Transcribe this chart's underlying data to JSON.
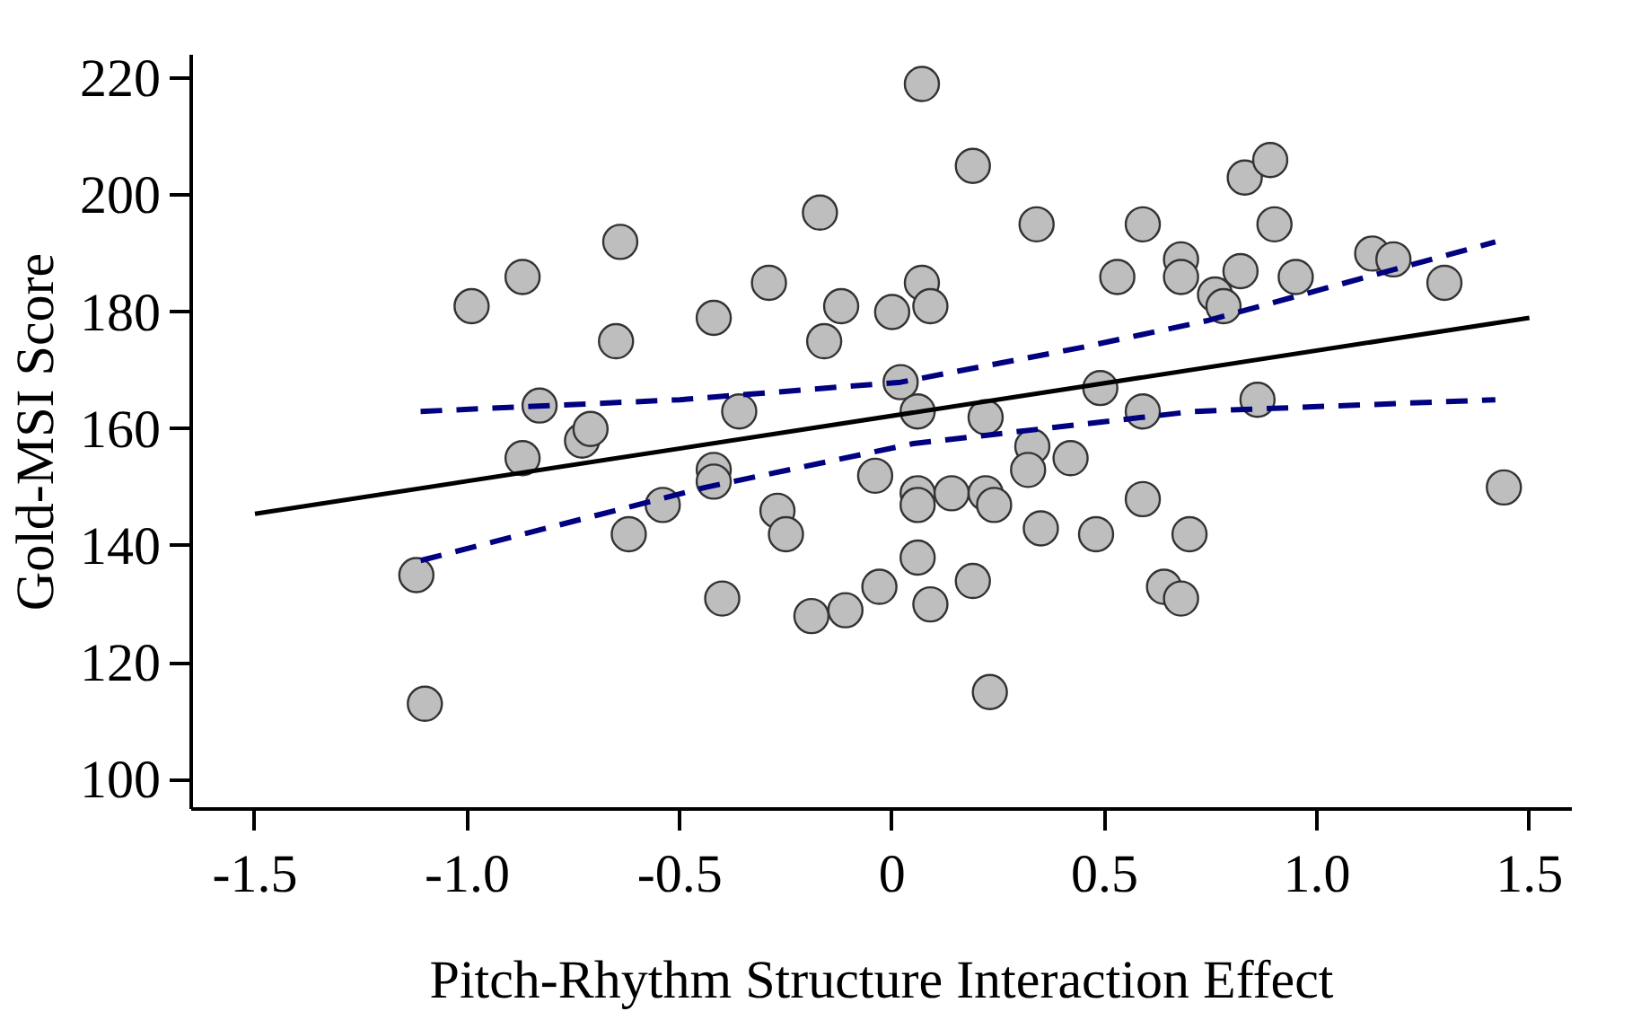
{
  "chart_data": {
    "type": "scatter",
    "xlabel": "Pitch-Rhythm Structure Interaction Effect",
    "ylabel": "Gold-MSI Score",
    "xlim": [
      -1.65,
      1.6
    ],
    "ylim": [
      95,
      224
    ],
    "xticks": [
      {
        "value": -1.5,
        "label": "-1.5"
      },
      {
        "value": -1,
        "label": "-1.0"
      },
      {
        "value": -0.5,
        "label": "-0.5"
      },
      0,
      0.5,
      {
        "value": 1,
        "label": "1.0"
      },
      1.5
    ],
    "yticks": [
      100,
      120,
      140,
      160,
      180,
      200,
      220
    ],
    "grid": false,
    "series": [
      {
        "color": "#bebebe",
        "marker": "circle",
        "x": [
          -0.99,
          -0.87,
          -0.64,
          -0.65,
          -0.83,
          -0.87,
          -0.73,
          -0.71,
          -1.12,
          -1.1,
          -0.62,
          -0.54,
          -0.42,
          -0.36,
          -0.42,
          -0.42,
          -0.29,
          -0.27,
          -0.25,
          -0.4,
          -0.17,
          -0.12,
          -0.16,
          -0.19,
          -0.11,
          -0.03,
          -0.04,
          0.07,
          0.0,
          0.07,
          0.09,
          0.02,
          0.06,
          0.06,
          0.06,
          0.14,
          0.06,
          0.09,
          0.19,
          0.22,
          0.22,
          0.24,
          0.19,
          0.23,
          0.34,
          0.33,
          0.32,
          0.42,
          0.35,
          0.48,
          0.49,
          0.53,
          0.59,
          0.59,
          0.59,
          0.64,
          0.68,
          0.7,
          0.68,
          0.68,
          0.76,
          0.78,
          0.82,
          0.83,
          0.89,
          0.9,
          0.86,
          0.95,
          1.13,
          1.18,
          1.3,
          1.44
        ],
        "values": [
          181,
          186,
          192,
          175,
          164,
          155,
          158,
          160,
          135,
          113,
          142,
          147,
          179,
          163,
          153,
          151,
          185,
          146,
          142,
          131,
          197,
          181,
          175,
          128,
          129,
          133,
          152,
          219,
          180,
          185,
          181,
          168,
          163,
          149,
          147,
          149,
          138,
          130,
          205,
          162,
          149,
          147,
          134,
          115,
          195,
          157,
          153,
          155,
          143,
          142,
          167,
          186,
          195,
          163,
          148,
          133,
          131,
          142,
          189,
          186,
          183,
          181,
          187,
          203,
          206,
          195,
          165,
          186,
          190,
          189,
          185,
          150
        ]
      },
      {
        "type": "line",
        "color": "#000000",
        "line_style": "solid",
        "x": [
          -1.5,
          1.5
        ],
        "values": [
          145.5,
          179
        ]
      },
      {
        "type": "line",
        "color": "#000080",
        "line_style": "dashed",
        "x": [
          -1.11,
          -0.5,
          0.02,
          0.45,
          0.74,
          1.42
        ],
        "values": [
          163,
          165,
          168,
          174,
          178.5,
          192
        ]
      },
      {
        "type": "line",
        "color": "#000080",
        "line_style": "dashed",
        "x": [
          -1.11,
          -0.44,
          0.05,
          0.71,
          1.42
        ],
        "values": [
          137.5,
          150,
          157.5,
          163,
          165
        ]
      }
    ]
  }
}
